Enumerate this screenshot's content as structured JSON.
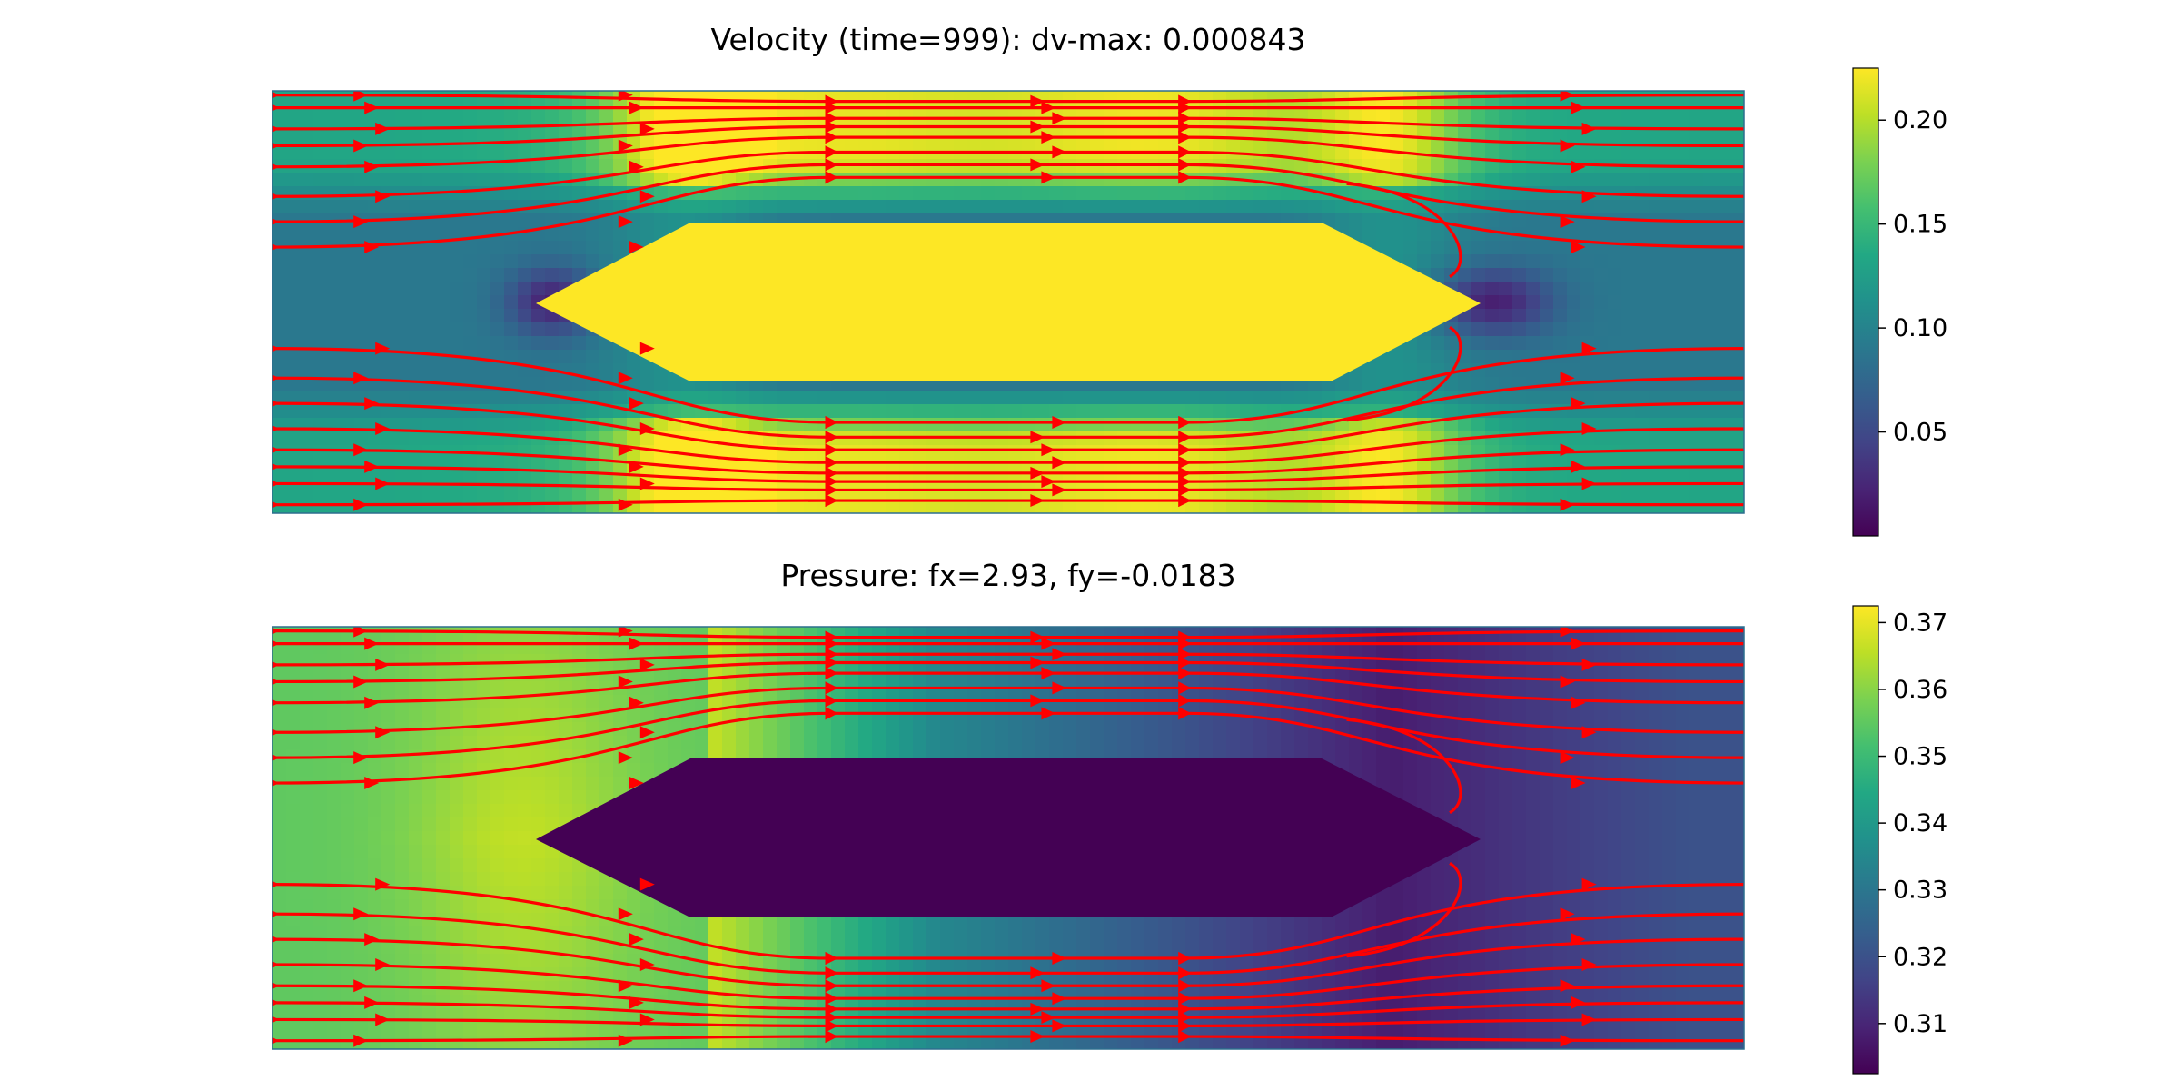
{
  "chart_data": [
    {
      "type": "heatmap",
      "name": "velocity",
      "title": "Velocity (time=999): dv-max: 0.000843",
      "colormap": "viridis",
      "field": {
        "background": 0.09,
        "band_peak": 0.21,
        "side_high": 0.2,
        "obstacle": 0.225,
        "near_obstacle": 0.02,
        "inlet": 0.09,
        "outlet": 0.1
      },
      "colorbar": {
        "range": [
          0.0,
          0.225
        ],
        "ticks": [
          0.05,
          0.1,
          0.15,
          0.2
        ],
        "tick_labels": [
          "0.05",
          "0.10",
          "0.15",
          "0.20"
        ]
      },
      "streamlines": {
        "color": "#ff0000"
      },
      "xlabel": "",
      "ylabel": ""
    },
    {
      "type": "heatmap",
      "name": "pressure",
      "title": "Pressure: fx=2.93, fy=-0.0183",
      "colormap": "viridis",
      "field": {
        "inlet": 0.355,
        "upstream_peak": 0.366,
        "mid": 0.335,
        "downstream_low": 0.308,
        "outlet": 0.32,
        "obstacle": 0.3025
      },
      "colorbar": {
        "range": [
          0.3025,
          0.3725
        ],
        "ticks": [
          0.31,
          0.32,
          0.33,
          0.34,
          0.35,
          0.36,
          0.37
        ],
        "tick_labels": [
          "0.31",
          "0.32",
          "0.33",
          "0.34",
          "0.35",
          "0.36",
          "0.37"
        ]
      },
      "streamlines": {
        "color": "#ff0000"
      },
      "xlabel": "",
      "ylabel": ""
    }
  ]
}
